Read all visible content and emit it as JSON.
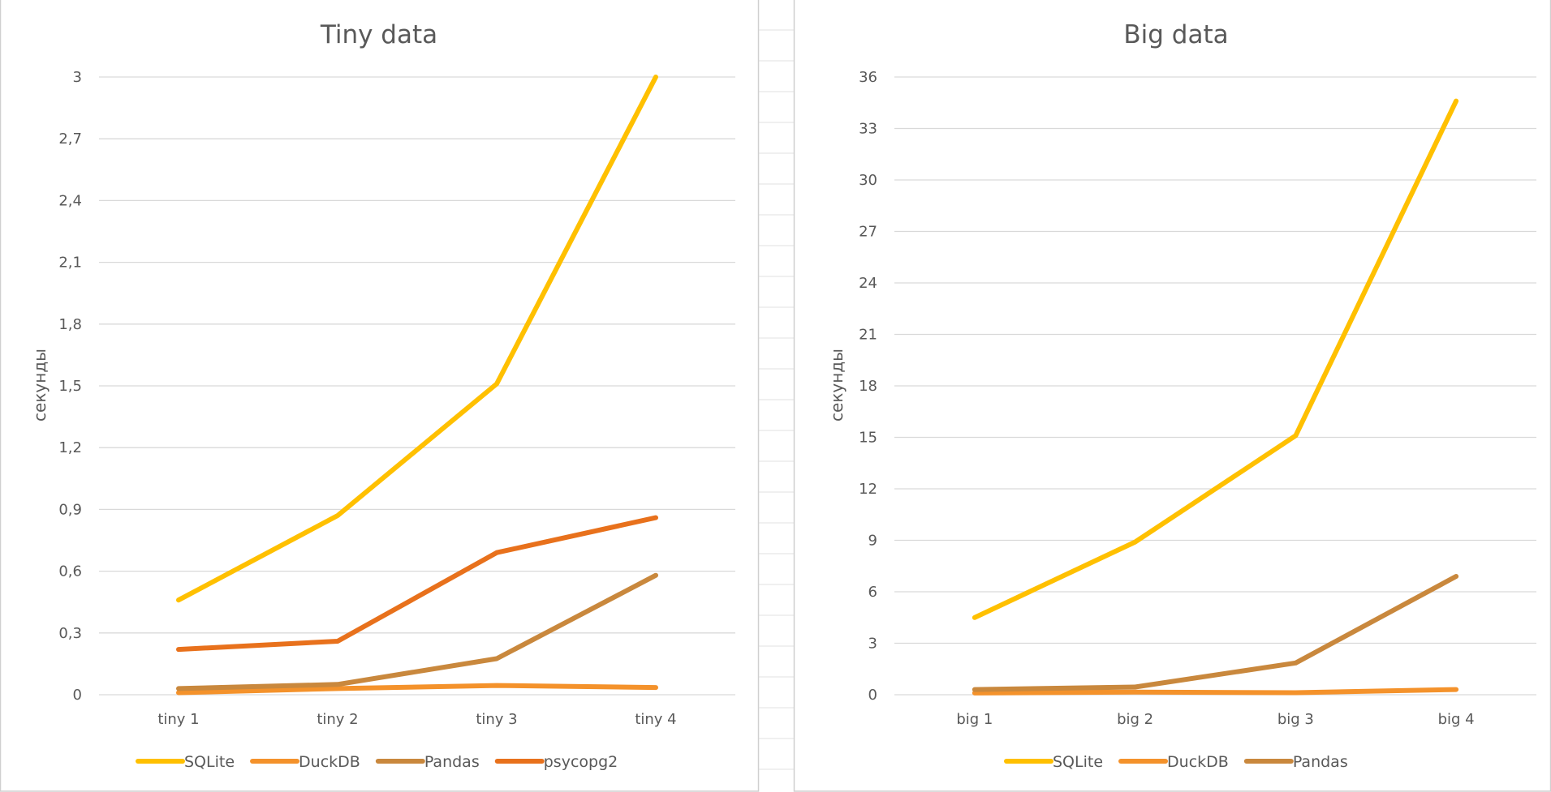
{
  "chart_data": [
    {
      "type": "line",
      "title": "Tiny data",
      "xlabel": "",
      "ylabel": "секунды",
      "categories": [
        "tiny 1",
        "tiny 2",
        "tiny 3",
        "tiny 4"
      ],
      "ylim": [
        0,
        3
      ],
      "yticks": [
        "0",
        "0,3",
        "0,6",
        "0,9",
        "1,2",
        "1,5",
        "1,8",
        "2,1",
        "2,4",
        "2,7",
        "3"
      ],
      "grid": true,
      "legend_position": "bottom",
      "series": [
        {
          "name": "SQLite",
          "color": "#FFC000",
          "values": [
            0.46,
            0.87,
            1.51,
            3.0
          ]
        },
        {
          "name": "DuckDB",
          "color": "#F4922B",
          "values": [
            0.01,
            0.03,
            0.045,
            0.035
          ]
        },
        {
          "name": "Pandas",
          "color": "#C9883D",
          "values": [
            0.03,
            0.05,
            0.175,
            0.58
          ]
        },
        {
          "name": "psycopg2",
          "color": "#E8711C",
          "values": [
            0.22,
            0.26,
            0.69,
            0.86
          ]
        }
      ]
    },
    {
      "type": "line",
      "title": "Big data",
      "xlabel": "",
      "ylabel": "секунды",
      "categories": [
        "big 1",
        "big 2",
        "big 3",
        "big 4"
      ],
      "ylim": [
        0,
        36
      ],
      "yticks": [
        "0",
        "3",
        "6",
        "9",
        "12",
        "15",
        "18",
        "21",
        "24",
        "27",
        "30",
        "33",
        "36"
      ],
      "grid": true,
      "legend_position": "bottom",
      "series": [
        {
          "name": "SQLite",
          "color": "#FFC000",
          "values": [
            4.5,
            8.9,
            15.1,
            34.6
          ]
        },
        {
          "name": "DuckDB",
          "color": "#F4922B",
          "values": [
            0.1,
            0.15,
            0.12,
            0.3
          ]
        },
        {
          "name": "Pandas",
          "color": "#C9883D",
          "values": [
            0.3,
            0.45,
            1.85,
            6.9
          ]
        }
      ]
    }
  ]
}
